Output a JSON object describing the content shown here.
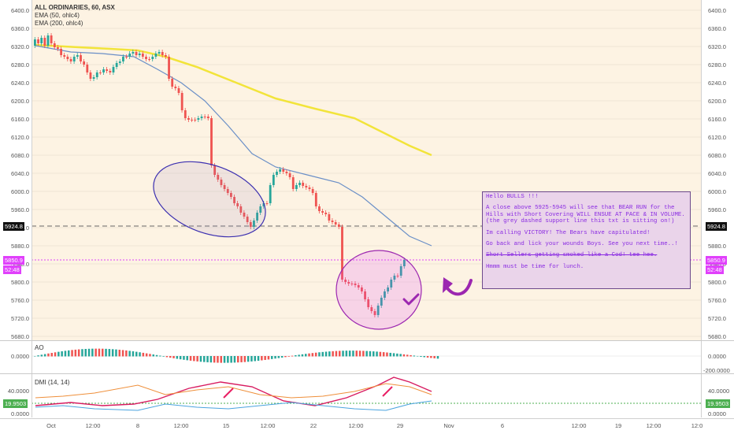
{
  "legend": {
    "title": "ALL ORDINARIES, 60, ASX",
    "ema50": "EMA (50, ohlc4)",
    "ema200": "EMA (200, ohlc4)"
  },
  "price_axis": [
    "6400.0",
    "6360.0",
    "6320.0",
    "6280.0",
    "6240.0",
    "6200.0",
    "6160.0",
    "6120.0",
    "6080.0",
    "6040.0",
    "6000.0",
    "5960.0",
    "5920.0",
    "5880.0",
    "5840.0",
    "5800.0",
    "5760.0",
    "5720.0",
    "5680.0"
  ],
  "tags": {
    "support": "5924.8",
    "last": "5850.9",
    "countdown": "52:48",
    "dmi_value": "19.9503"
  },
  "note": {
    "l1": "Hello BULLS !!!",
    "l2": "A close above 5925-5945 will see that BEAR RUN for the Hills with Short Covering  WILL ENSUE AT PACE & IN VOLUME. (the grey dashed support line this txt is sitting on!)",
    "l3": "Im calling VICTORY! The Bears have capitulated!",
    "l4": "Go back and lick your wounds Boys. See you next time..!",
    "l5": "Short Sellers getting smoked like a Cod! tee hee.",
    "l6": "Hmmm must be time for lunch."
  },
  "ao": {
    "label": "AO",
    "tick_left": "0.0000",
    "tick_right_top": "0.0000",
    "tick_right_bottom": "-200.0000"
  },
  "dmi": {
    "label": "DMI (14, 14)",
    "tick_40": "40.0000",
    "tick_0": "0.0000",
    "tick_r40": "40.0000",
    "tick_r0": "0.0000"
  },
  "time_axis": [
    "Oct",
    "12:00",
    "8",
    "12:00",
    "15",
    "12:00",
    "22",
    "12:00",
    "29",
    "Nov",
    "6",
    "12:00",
    "19",
    "12:00",
    "12:0"
  ],
  "colors": {
    "up": "#26a69a",
    "down": "#ef5350",
    "ema50": "#6a8fc7",
    "ema200": "#f2e43a",
    "annot": "#9c27b0",
    "support": "#666666",
    "last_line": "#e040fb"
  }
}
